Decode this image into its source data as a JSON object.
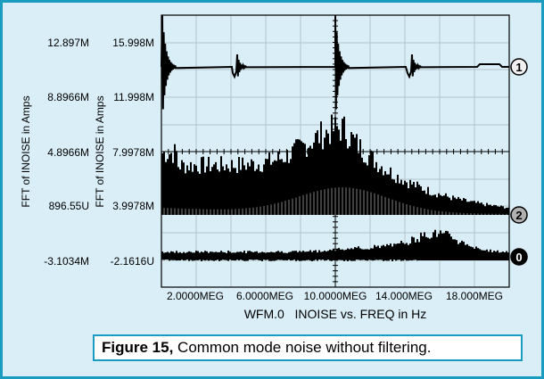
{
  "chart_data": {
    "type": "line",
    "xlabel": "WFM.0   INOISE vs. FREQ in Hz",
    "x_ticks": [
      "2.0000MEG",
      "6.0000MEG",
      "10.0000MEG",
      "14.000MEG",
      "18.000MEG"
    ],
    "y_axes": [
      {
        "label": "FFT of INOISE in Amps",
        "ticks": [
          "12.897M",
          "8.8966M",
          "4.8966M",
          "896.55U",
          "-3.1034M"
        ]
      },
      {
        "label": "FFT of INOISE in Amps",
        "ticks": [
          "15.998M",
          "11.998M",
          "7.9978M",
          "3.9978M",
          "-2.1616U"
        ]
      }
    ],
    "grid": true,
    "trace_markers": [
      "1",
      "2",
      "0"
    ],
    "colors": {
      "background": "#d9eef6",
      "border": "#1a9cc0",
      "grid": "#b4c4cc",
      "trace": "#000000",
      "inner_trace": "#808080"
    }
  },
  "caption": {
    "bold": "Figure 15,",
    "text": " Common mode noise without filtering."
  }
}
